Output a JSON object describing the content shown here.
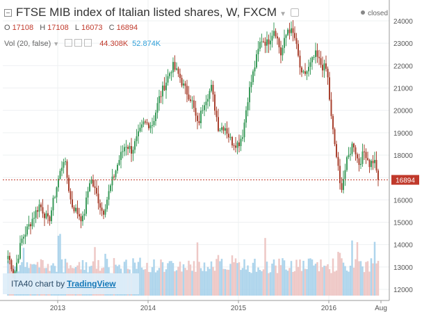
{
  "header": {
    "title": "FTSE MIB index of Italian listed shares, W, FXCM",
    "status": "closed",
    "ohlc": {
      "o_label": "O",
      "o": "17108",
      "h_label": "H",
      "h": "17108",
      "l_label": "L",
      "l": "16073",
      "c_label": "C",
      "c": "16894"
    },
    "volume": {
      "label": "Vol (20, false)",
      "value_a": "44.308K",
      "value_b": "52.874K"
    }
  },
  "watermark": {
    "prefix": "ITA40 chart by",
    "link": "TradingView"
  },
  "price_badge": "16894",
  "colors": {
    "up": "#3a9a5a",
    "down": "#a8402e",
    "vol_up": "#a5d0ea",
    "vol_down": "#ecc2c0",
    "line": "#c0392b",
    "badge": "#c0392b"
  },
  "chart_data": {
    "type": "candlestick",
    "y_ticks": [
      12000,
      13000,
      14000,
      15000,
      16000,
      17000,
      18000,
      19000,
      20000,
      21000,
      22000,
      23000,
      24000
    ],
    "y_range": [
      11500,
      24300
    ],
    "x_ticks": [
      "2013",
      "2014",
      "2015",
      "2016",
      "Aug"
    ],
    "last_price": 16894,
    "anchors": [
      [
        2012.45,
        13500
      ],
      [
        2012.52,
        12700
      ],
      [
        2012.6,
        14200
      ],
      [
        2012.7,
        15000
      ],
      [
        2012.8,
        15800
      ],
      [
        2012.9,
        15000
      ],
      [
        2013.0,
        16800
      ],
      [
        2013.07,
        17900
      ],
      [
        2013.15,
        15800
      ],
      [
        2013.28,
        15100
      ],
      [
        2013.36,
        17000
      ],
      [
        2013.45,
        16000
      ],
      [
        2013.5,
        15400
      ],
      [
        2013.6,
        16800
      ],
      [
        2013.68,
        17800
      ],
      [
        2013.75,
        18500
      ],
      [
        2013.82,
        18200
      ],
      [
        2013.95,
        19400
      ],
      [
        2014.05,
        19400
      ],
      [
        2014.12,
        20500
      ],
      [
        2014.2,
        21300
      ],
      [
        2014.27,
        22000
      ],
      [
        2014.35,
        21500
      ],
      [
        2014.4,
        21000
      ],
      [
        2014.48,
        20500
      ],
      [
        2014.55,
        19300
      ],
      [
        2014.62,
        20400
      ],
      [
        2014.7,
        21000
      ],
      [
        2014.78,
        19200
      ],
      [
        2014.85,
        19300
      ],
      [
        2014.92,
        18600
      ],
      [
        2015.0,
        18500
      ],
      [
        2015.05,
        19000
      ],
      [
        2015.1,
        20500
      ],
      [
        2015.17,
        21800
      ],
      [
        2015.25,
        23200
      ],
      [
        2015.32,
        23000
      ],
      [
        2015.4,
        23700
      ],
      [
        2015.47,
        22500
      ],
      [
        2015.55,
        23700
      ],
      [
        2015.62,
        23300
      ],
      [
        2015.7,
        21500
      ],
      [
        2015.77,
        21800
      ],
      [
        2015.85,
        22500
      ],
      [
        2015.92,
        22000
      ],
      [
        2015.98,
        21800
      ],
      [
        2016.03,
        19500
      ],
      [
        2016.1,
        17500
      ],
      [
        2016.13,
        16400
      ],
      [
        2016.2,
        17700
      ],
      [
        2016.27,
        18600
      ],
      [
        2016.33,
        17600
      ],
      [
        2016.4,
        18200
      ],
      [
        2016.45,
        17600
      ],
      [
        2016.5,
        17800
      ],
      [
        2016.56,
        16894
      ]
    ]
  }
}
